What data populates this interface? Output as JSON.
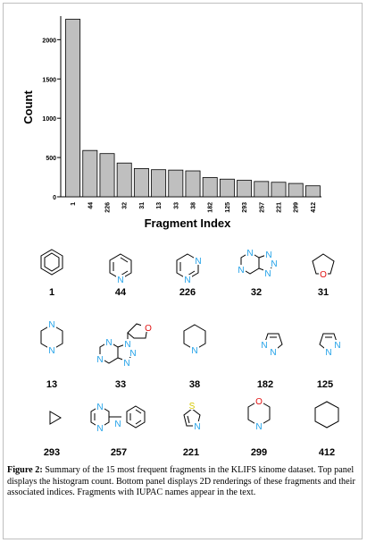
{
  "chart_data": {
    "type": "bar",
    "xlabel": "Fragment Index",
    "ylabel": "Count",
    "ylim": [
      0,
      2300
    ],
    "yticks": [
      0,
      500,
      1000,
      1500,
      2000
    ],
    "categories": [
      "1",
      "44",
      "226",
      "32",
      "31",
      "13",
      "33",
      "38",
      "182",
      "125",
      "293",
      "257",
      "221",
      "299",
      "412"
    ],
    "values": [
      2260,
      590,
      550,
      430,
      360,
      345,
      340,
      330,
      245,
      225,
      210,
      195,
      185,
      170,
      140
    ],
    "bar_color": "#bfbfbf",
    "grid": false
  },
  "fragments": [
    {
      "index": "1",
      "structure": "benzene"
    },
    {
      "index": "44",
      "structure": "pyridine"
    },
    {
      "index": "226",
      "structure": "pyrimidine"
    },
    {
      "index": "32",
      "structure": "purine"
    },
    {
      "index": "31",
      "structure": "tetrahydrofuran"
    },
    {
      "index": "13",
      "structure": "piperazine"
    },
    {
      "index": "33",
      "structure": "9-(oxolan-2-yl)purine"
    },
    {
      "index": "38",
      "structure": "piperidine"
    },
    {
      "index": "182",
      "structure": "pyrazole"
    },
    {
      "index": "125",
      "structure": "pyrazole"
    },
    {
      "index": "293",
      "structure": "cyclopropane"
    },
    {
      "index": "257",
      "structure": "N-phenylpyrimidin-2-amine"
    },
    {
      "index": "221",
      "structure": "thiazole"
    },
    {
      "index": "299",
      "structure": "morpholine"
    },
    {
      "index": "412",
      "structure": "cyclohexane"
    }
  ],
  "caption": {
    "label": "Figure 2:",
    "text": " Summary of the 15 most frequent fragments in the KLIFS kinome dataset. Top panel displays the histogram count. Bottom panel displays 2D renderings of these fragments and their associated indices. Fragments with IUPAC names appear in the text."
  },
  "colors": {
    "nitrogen": "#1fa0e8",
    "oxygen": "#e01010",
    "sulfur": "#d6c800",
    "bond": "#000000"
  }
}
